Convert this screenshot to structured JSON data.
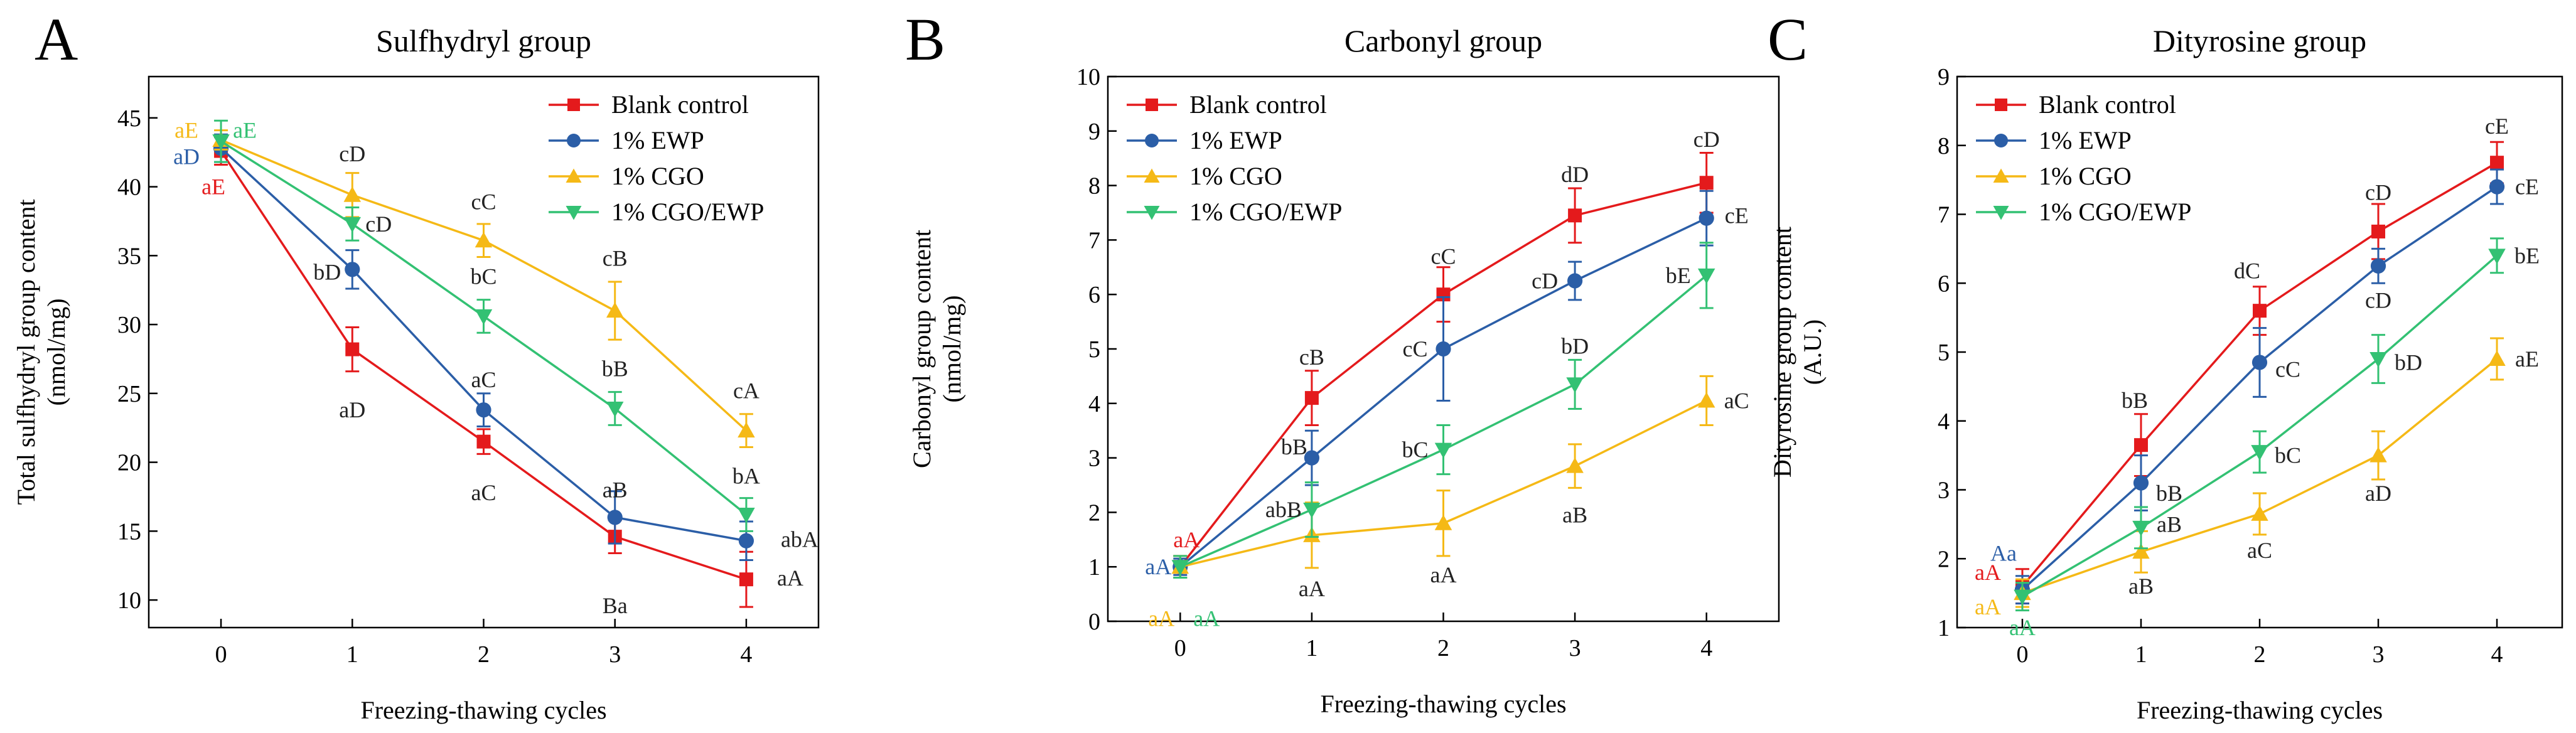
{
  "chart_data": [
    {
      "type": "line",
      "panel_letter": "A",
      "title": "Sulfhydryl group",
      "xlabel": "Freezing-thawing cycles",
      "ylabel_lines": [
        "Total sulfhydryl group content",
        "(nmol/mg)"
      ],
      "x": [
        0,
        1,
        2,
        3,
        4
      ],
      "xticks": [
        0,
        1,
        2,
        3,
        4
      ],
      "xlim": [
        -0.55,
        4.55
      ],
      "ylim": [
        8,
        48
      ],
      "yticks": [
        10,
        15,
        20,
        25,
        30,
        35,
        40,
        45
      ],
      "legend_position": "top-right",
      "series": [
        {
          "name": "Blank control",
          "color": "#e41a1c",
          "marker": "square",
          "values": [
            42.6,
            28.2,
            21.5,
            14.6,
            11.5
          ],
          "errors": [
            1.0,
            1.6,
            0.9,
            1.2,
            2.0
          ],
          "labels": [
            {
              "text": "aE",
              "x": 0,
              "y": 40.0,
              "dx": -12,
              "color": "#e41a1c"
            },
            {
              "text": "aD",
              "x": 1,
              "y": 23.8,
              "dx": 0,
              "color": "#222222"
            },
            {
              "text": "aC",
              "x": 2,
              "y": 17.8,
              "dx": 0,
              "color": "#222222"
            },
            {
              "text": "Ba",
              "x": 3,
              "y": 9.6,
              "dx": 0,
              "color": "#222222"
            },
            {
              "text": "aA",
              "x": 4,
              "y": 11.6,
              "dx": 70,
              "color": "#222222"
            }
          ]
        },
        {
          "name": "1% EWP",
          "color": "#2b5ea7",
          "marker": "circle",
          "values": [
            42.8,
            34.0,
            23.8,
            16.0,
            14.3
          ],
          "errors": [
            1.0,
            1.4,
            1.2,
            1.9,
            1.4
          ],
          "labels": [
            {
              "text": "aD",
              "x": 0,
              "y": 42.2,
              "dx": -55,
              "color": "#2b5ea7"
            },
            {
              "text": "bD",
              "x": 1,
              "y": 33.8,
              "dx": -40,
              "color": "#222222"
            },
            {
              "text": "aC",
              "x": 2,
              "y": 26.0,
              "dx": 0,
              "color": "#222222"
            },
            {
              "text": "aB",
              "x": 3,
              "y": 18.0,
              "dx": 0,
              "color": "#222222"
            },
            {
              "text": "abA",
              "x": 4,
              "y": 14.4,
              "dx": 85,
              "color": "#222222"
            }
          ]
        },
        {
          "name": "1% CGO",
          "color": "#f5b916",
          "marker": "triangle-up",
          "values": [
            43.4,
            39.4,
            36.1,
            31.0,
            22.3
          ],
          "errors": [
            0.7,
            1.6,
            1.2,
            2.1,
            1.2
          ],
          "labels": [
            {
              "text": "aE",
              "x": 0,
              "y": 44.1,
              "dx": -55,
              "color": "#f5b916"
            },
            {
              "text": "cD",
              "x": 1,
              "y": 42.4,
              "dx": 0,
              "color": "#222222"
            },
            {
              "text": "cC",
              "x": 2,
              "y": 38.9,
              "dx": 0,
              "color": "#222222"
            },
            {
              "text": "cB",
              "x": 3,
              "y": 34.8,
              "dx": 0,
              "color": "#222222"
            },
            {
              "text": "cA",
              "x": 4,
              "y": 25.2,
              "dx": 0,
              "color": "#222222"
            }
          ]
        },
        {
          "name": "1% CGO/EWP",
          "color": "#33c173",
          "marker": "triangle-down",
          "values": [
            43.3,
            37.3,
            30.6,
            23.9,
            16.2
          ],
          "errors": [
            1.5,
            1.2,
            1.2,
            1.2,
            1.2
          ],
          "labels": [
            {
              "text": "aE",
              "x": 0,
              "y": 44.1,
              "dx": 38,
              "color": "#33c173"
            },
            {
              "text": "cD",
              "x": 1,
              "y": 37.3,
              "dx": 42,
              "color": "#222222"
            },
            {
              "text": "bC",
              "x": 2,
              "y": 33.5,
              "dx": 0,
              "color": "#222222"
            },
            {
              "text": "bB",
              "x": 3,
              "y": 26.8,
              "dx": 0,
              "color": "#222222"
            },
            {
              "text": "bA",
              "x": 4,
              "y": 19.0,
              "dx": 0,
              "color": "#222222"
            }
          ]
        }
      ]
    },
    {
      "type": "line",
      "panel_letter": "B",
      "title": "Carbonyl group",
      "xlabel": "Freezing-thawing cycles",
      "ylabel_lines": [
        "Carbonyl group content",
        "(nmol/mg)"
      ],
      "x": [
        0,
        1,
        2,
        3,
        4
      ],
      "xticks": [
        0,
        1,
        2,
        3,
        4
      ],
      "xlim": [
        -0.55,
        4.55
      ],
      "ylim": [
        0,
        10
      ],
      "yticks": [
        0,
        1,
        2,
        3,
        4,
        5,
        6,
        7,
        8,
        9,
        10
      ],
      "legend_position": "top-left",
      "series": [
        {
          "name": "Blank control",
          "color": "#e41a1c",
          "marker": "square",
          "values": [
            1.0,
            4.1,
            6.0,
            7.45,
            8.05
          ],
          "errors": [
            0.2,
            0.5,
            0.5,
            0.5,
            0.55
          ],
          "labels": [
            {
              "text": "aA",
              "x": 0,
              "y": 1.5,
              "dx": 10,
              "color": "#e41a1c"
            },
            {
              "text": "cB",
              "x": 1,
              "y": 4.85,
              "dx": 0,
              "color": "#222222"
            },
            {
              "text": "cC",
              "x": 2,
              "y": 6.7,
              "dx": 0,
              "color": "#222222"
            },
            {
              "text": "dD",
              "x": 3,
              "y": 8.2,
              "dx": 0,
              "color": "#222222"
            },
            {
              "text": "cD",
              "x": 4,
              "y": 8.85,
              "dx": 0,
              "color": "#222222"
            }
          ]
        },
        {
          "name": "1% EWP",
          "color": "#2b5ea7",
          "marker": "circle",
          "values": [
            1.0,
            3.0,
            5.0,
            6.25,
            7.4
          ],
          "errors": [
            0.15,
            0.5,
            0.95,
            0.35,
            0.5
          ],
          "labels": [
            {
              "text": "aA",
              "x": 0,
              "y": 1.0,
              "dx": -35,
              "color": "#2b5ea7"
            },
            {
              "text": "bB",
              "x": 1,
              "y": 3.2,
              "dx": -28,
              "color": "#222222"
            },
            {
              "text": "cC",
              "x": 2,
              "y": 5.0,
              "dx": -45,
              "color": "#222222"
            },
            {
              "text": "cD",
              "x": 3,
              "y": 6.25,
              "dx": -48,
              "color": "#222222"
            },
            {
              "text": "cE",
              "x": 4,
              "y": 7.45,
              "dx": 48,
              "color": "#222222"
            }
          ]
        },
        {
          "name": "1% CGO",
          "color": "#f5b916",
          "marker": "triangle-up",
          "values": [
            1.0,
            1.58,
            1.8,
            2.85,
            4.05
          ],
          "errors": [
            0.2,
            0.6,
            0.6,
            0.4,
            0.45
          ],
          "labels": [
            {
              "text": "aA",
              "x": 0,
              "y": 0.05,
              "dx": -30,
              "color": "#f5b916"
            },
            {
              "text": "aA",
              "x": 1,
              "y": 0.6,
              "dx": 0,
              "color": "#222222"
            },
            {
              "text": "aA",
              "x": 2,
              "y": 0.85,
              "dx": 0,
              "color": "#222222"
            },
            {
              "text": "aB",
              "x": 3,
              "y": 1.95,
              "dx": 0,
              "color": "#222222"
            },
            {
              "text": "aC",
              "x": 4,
              "y": 4.05,
              "dx": 48,
              "color": "#222222"
            }
          ]
        },
        {
          "name": "1% CGO/EWP",
          "color": "#33c173",
          "marker": "triangle-down",
          "values": [
            1.0,
            2.05,
            3.15,
            4.35,
            6.35
          ],
          "errors": [
            0.2,
            0.5,
            0.45,
            0.45,
            0.6
          ],
          "labels": [
            {
              "text": "aA",
              "x": 0,
              "y": 0.05,
              "dx": 42,
              "color": "#33c173"
            },
            {
              "text": "abB",
              "x": 1,
              "y": 2.05,
              "dx": -45,
              "color": "#222222"
            },
            {
              "text": "bC",
              "x": 2,
              "y": 3.15,
              "dx": -45,
              "color": "#222222"
            },
            {
              "text": "bD",
              "x": 3,
              "y": 5.05,
              "dx": 0,
              "color": "#222222"
            },
            {
              "text": "bE",
              "x": 4,
              "y": 6.35,
              "dx": -45,
              "color": "#222222"
            }
          ]
        }
      ]
    },
    {
      "type": "line",
      "panel_letter": "C",
      "title": "Dityrosine group",
      "xlabel": "Freezing-thawing cycles",
      "ylabel_lines": [
        "Dityrosine group content",
        "(A.U.)"
      ],
      "x": [
        0,
        1,
        2,
        3,
        4
      ],
      "xticks": [
        0,
        1,
        2,
        3,
        4
      ],
      "xlim": [
        -0.55,
        4.55
      ],
      "ylim": [
        1,
        9
      ],
      "yticks": [
        1,
        2,
        3,
        4,
        5,
        6,
        7,
        8,
        9
      ],
      "legend_position": "top-left",
      "series": [
        {
          "name": "Blank control",
          "color": "#e41a1c",
          "marker": "square",
          "values": [
            1.6,
            3.65,
            5.6,
            6.75,
            7.75
          ],
          "errors": [
            0.25,
            0.45,
            0.35,
            0.4,
            0.3
          ],
          "labels": [
            {
              "text": "aA",
              "x": 0,
              "y": 1.8,
              "dx": -55,
              "color": "#e41a1c"
            },
            {
              "text": "bB",
              "x": 1,
              "y": 4.3,
              "dx": -10,
              "color": "#222222"
            },
            {
              "text": "dC",
              "x": 2,
              "y": 6.18,
              "dx": -20,
              "color": "#222222"
            },
            {
              "text": "cD",
              "x": 3,
              "y": 7.32,
              "dx": 0,
              "color": "#222222"
            },
            {
              "text": "cE",
              "x": 4,
              "y": 8.28,
              "dx": 0,
              "color": "#222222"
            }
          ]
        },
        {
          "name": "1% EWP",
          "color": "#2b5ea7",
          "marker": "circle",
          "values": [
            1.55,
            3.1,
            4.85,
            6.25,
            7.4
          ],
          "errors": [
            0.2,
            0.4,
            0.5,
            0.25,
            0.25
          ],
          "labels": [
            {
              "text": "Aa",
              "x": 0,
              "y": 2.08,
              "dx": -30,
              "color": "#2b5ea7"
            },
            {
              "text": "bB",
              "x": 1,
              "y": 2.95,
              "dx": 45,
              "color": "#222222"
            },
            {
              "text": "cC",
              "x": 2,
              "y": 4.75,
              "dx": 45,
              "color": "#222222"
            },
            {
              "text": "cD",
              "x": 3,
              "y": 5.75,
              "dx": 0,
              "color": "#222222"
            },
            {
              "text": "cE",
              "x": 4,
              "y": 7.4,
              "dx": 48,
              "color": "#222222"
            }
          ]
        },
        {
          "name": "1% CGO",
          "color": "#f5b916",
          "marker": "triangle-up",
          "values": [
            1.5,
            2.1,
            2.65,
            3.5,
            4.9
          ],
          "errors": [
            0.2,
            0.3,
            0.3,
            0.35,
            0.3
          ],
          "labels": [
            {
              "text": "aA",
              "x": 0,
              "y": 1.3,
              "dx": -55,
              "color": "#f5b916"
            },
            {
              "text": "aB",
              "x": 1,
              "y": 1.6,
              "dx": 0,
              "color": "#222222"
            },
            {
              "text": "aC",
              "x": 2,
              "y": 2.12,
              "dx": 0,
              "color": "#222222"
            },
            {
              "text": "aD",
              "x": 3,
              "y": 2.95,
              "dx": 0,
              "color": "#222222"
            },
            {
              "text": "aE",
              "x": 4,
              "y": 4.9,
              "dx": 48,
              "color": "#222222"
            }
          ]
        },
        {
          "name": "1% CGO/EWP",
          "color": "#33c173",
          "marker": "triangle-down",
          "values": [
            1.45,
            2.45,
            3.55,
            4.9,
            6.4
          ],
          "errors": [
            0.2,
            0.3,
            0.3,
            0.35,
            0.25
          ],
          "labels": [
            {
              "text": "aA",
              "x": 0,
              "y": 1.0,
              "dx": 0,
              "color": "#33c173"
            },
            {
              "text": "aB",
              "x": 1,
              "y": 2.5,
              "dx": 45,
              "color": "#222222"
            },
            {
              "text": "bC",
              "x": 2,
              "y": 3.5,
              "dx": 45,
              "color": "#222222"
            },
            {
              "text": "bD",
              "x": 3,
              "y": 4.85,
              "dx": 48,
              "color": "#222222"
            },
            {
              "text": "bE",
              "x": 4,
              "y": 6.4,
              "dx": 48,
              "color": "#222222"
            }
          ]
        }
      ]
    }
  ]
}
